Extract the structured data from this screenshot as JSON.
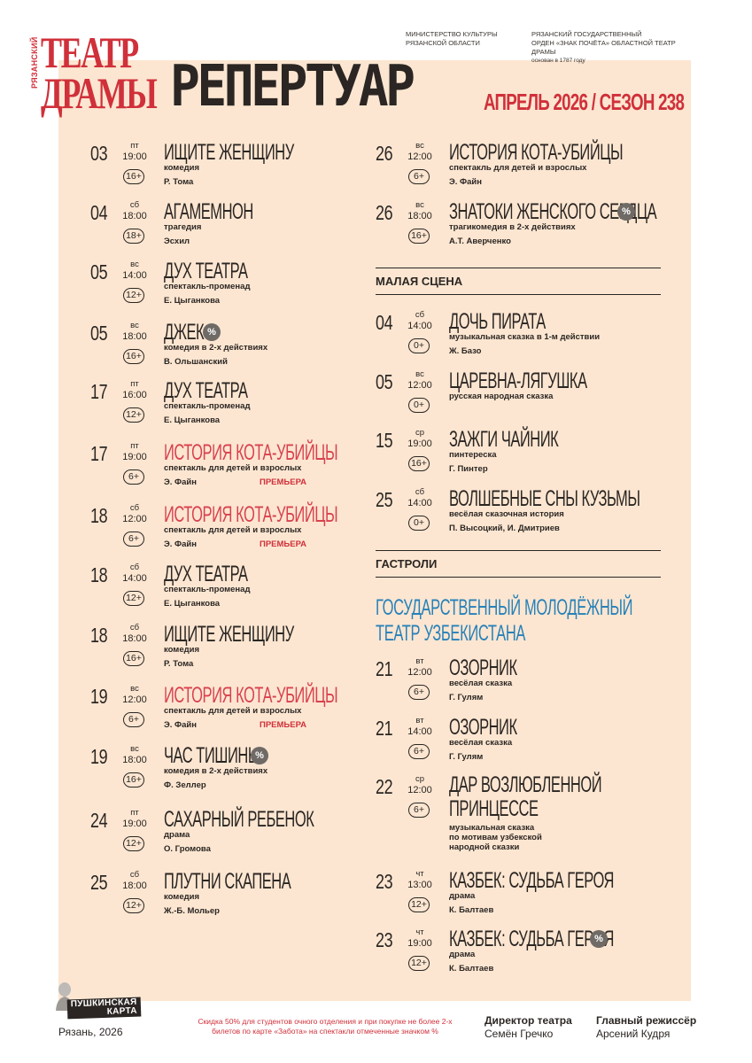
{
  "header": {
    "logo_side": "РЯЗАНСКИЙ",
    "logo_line1": "ТЕАТР",
    "logo_line2": "ДРАМЫ",
    "title": "РЕПЕРТУАР",
    "ministry": [
      "МИНИСТЕРСТВО КУЛЬТУРЫ",
      "РЯЗАНСКОЙ ОБЛАСТИ"
    ],
    "theatre": [
      "РЯЗАНСКИЙ ГОСУДАРСТВЕННЫЙ",
      "ОРДЕН «ЗНАК ПОЧЁТА» ОБЛАСТНОЙ ТЕАТР ДРАМЫ"
    ],
    "founded": "основан в 1787 году",
    "season": "АПРЕЛЬ 2026 / СЕЗОН 238"
  },
  "colors": {
    "background": "#fce6d1",
    "accent": "#d0303a",
    "tour": "#2781b9",
    "text": "#2b2623"
  },
  "left_events": [
    {
      "day": "03",
      "weekday": "пт",
      "time": "19:00",
      "age": "16+",
      "title": "ИЩИТЕ ЖЕНЩИНУ",
      "genre": "комедия",
      "author": "Р. Тома"
    },
    {
      "day": "04",
      "weekday": "сб",
      "time": "18:00",
      "age": "18+",
      "title": "АГАМЕМНОН",
      "genre": "трагедия",
      "author": "Эсхил"
    },
    {
      "day": "05",
      "weekday": "вс",
      "time": "14:00",
      "age": "12+",
      "title": "ДУХ ТЕАТРА",
      "genre": "спектакль-променад",
      "author": "Е. Цыганкова"
    },
    {
      "day": "05",
      "weekday": "вс",
      "time": "18:00",
      "age": "16+",
      "title": "ДЖЕК",
      "genre": "комедия в 2-х действиях",
      "author": "В. Ольшанский",
      "discount": "%"
    },
    {
      "day": "17",
      "weekday": "пт",
      "time": "16:00",
      "age": "12+",
      "title": "ДУХ ТЕАТРА",
      "genre": "спектакль-променад",
      "author": "Е. Цыганкова"
    },
    {
      "day": "17",
      "weekday": "пт",
      "time": "19:00",
      "age": "6+",
      "title": "ИСТОРИЯ КОТА-УБИЙЦЫ",
      "genre": "спектакль для детей и взрослых",
      "author": "Э. Файн",
      "premiere": "ПРЕМЬЕРА"
    },
    {
      "day": "18",
      "weekday": "сб",
      "time": "12:00",
      "age": "6+",
      "title": "ИСТОРИЯ КОТА-УБИЙЦЫ",
      "genre": "спектакль для детей и взрослых",
      "author": "Э. Файн",
      "premiere": "ПРЕМЬЕРА"
    },
    {
      "day": "18",
      "weekday": "сб",
      "time": "14:00",
      "age": "12+",
      "title": "ДУХ ТЕАТРА",
      "genre": "спектакль-променад",
      "author": "Е. Цыганкова"
    },
    {
      "day": "18",
      "weekday": "сб",
      "time": "18:00",
      "age": "16+",
      "title": "ИЩИТЕ ЖЕНЩИНУ",
      "genre": "комедия",
      "author": "Р. Тома"
    },
    {
      "day": "19",
      "weekday": "вс",
      "time": "12:00",
      "age": "6+",
      "title": "ИСТОРИЯ КОТА-УБИЙЦЫ",
      "genre": "спектакль для детей и взрослых",
      "author": "Э. Файн",
      "premiere": "ПРЕМЬЕРА"
    },
    {
      "day": "19",
      "weekday": "вс",
      "time": "18:00",
      "age": "16+",
      "title": "ЧАС ТИШИНЫ",
      "genre": "комедия в 2-х действиях",
      "author": "Ф. Зеллер",
      "discount": "%"
    },
    {
      "day": "24",
      "weekday": "пт",
      "time": "19:00",
      "age": "12+",
      "title": "САХАРНЫЙ РЕБЕНОК",
      "genre": "драма",
      "author": "О. Громова"
    },
    {
      "day": "25",
      "weekday": "сб",
      "time": "18:00",
      "age": "12+",
      "title": "ПЛУТНИ СКАПЕНА",
      "genre": "комедия",
      "author": "Ж.-Б. Мольер"
    }
  ],
  "right_events_main": [
    {
      "day": "26",
      "weekday": "вс",
      "time": "12:00",
      "age": "6+",
      "title": "ИСТОРИЯ КОТА-УБИЙЦЫ",
      "genre": "спектакль для детей и взрослых",
      "author": "Э. Файн"
    },
    {
      "day": "26",
      "weekday": "вс",
      "time": "18:00",
      "age": "16+",
      "title": "ЗНАТОКИ ЖЕНСКОГО СЕРДЦА",
      "genre": "трагикомедия в 2-х действиях",
      "author": "А.Т. Аверченко",
      "discount": "%"
    }
  ],
  "small_stage": {
    "label": "МАЛАЯ СЦЕНА",
    "events": [
      {
        "day": "04",
        "weekday": "сб",
        "time": "14:00",
        "age": "0+",
        "title": "ДОЧЬ ПИРАТА",
        "genre": "музыкальная сказка в 1-м действии",
        "author": "Ж. Базо"
      },
      {
        "day": "05",
        "weekday": "вс",
        "time": "12:00",
        "age": "0+",
        "title": "ЦАРЕВНА-ЛЯГУШКА",
        "genre": "русская народная сказка",
        "author": ""
      },
      {
        "day": "15",
        "weekday": "ср",
        "time": "19:00",
        "age": "16+",
        "title": "ЗАЖГИ ЧАЙНИК",
        "genre": "пинтереска",
        "author": "Г. Пинтер"
      },
      {
        "day": "25",
        "weekday": "сб",
        "time": "14:00",
        "age": "0+",
        "title": "ВОЛШЕБНЫЕ СНЫ КУЗЬМЫ",
        "genre": "весёлая сказочная история",
        "author": "П. Высоцкий, И. Дмитриев"
      }
    ]
  },
  "tours": {
    "label": "ГАСТРОЛИ",
    "troupe_line1": "ГОСУДАРСТВЕННЫЙ МОЛОДЁЖНЫЙ",
    "troupe_line2": "ТЕАТР УЗБЕКИСТАНА",
    "events": [
      {
        "day": "21",
        "weekday": "вт",
        "time": "12:00",
        "age": "6+",
        "title": "ОЗОРНИК",
        "genre": "весёлая сказка",
        "author": "Г. Гулям"
      },
      {
        "day": "21",
        "weekday": "вт",
        "time": "14:00",
        "age": "6+",
        "title": "ОЗОРНИК",
        "genre": "весёлая сказка",
        "author": "Г. Гулям"
      },
      {
        "day": "22",
        "weekday": "ср",
        "time": "12:00",
        "age": "6+",
        "title_line1": "ДАР ВОЗЛЮБЛЕННОЙ",
        "title_line2": "ПРИНЦЕССЕ",
        "genre_lines": [
          "музыкальная сказка",
          "по мотивам узбекской",
          "народной сказки"
        ]
      },
      {
        "day": "23",
        "weekday": "чт",
        "time": "13:00",
        "age": "12+",
        "title": "КАЗБЕК: СУДЬБА ГЕРОЯ",
        "genre": "драма",
        "author": "К. Балтаев"
      },
      {
        "day": "23",
        "weekday": "чт",
        "time": "19:00",
        "age": "12+",
        "title": "КАЗБЕК: СУДЬБА ГЕРОЯ",
        "genre": "драма",
        "author": "К. Балтаев",
        "discount": "%"
      }
    ]
  },
  "footer": {
    "pushkin_line1": "ПУШКИНСКАЯ",
    "pushkin_line2": "КАРТА",
    "city": "Рязань, 2026",
    "discount_note": "Скидка 50% для студентов очного отделения и при покупке не более 2-х билетов по карте «Забота» на спектакли отмеченные значком %",
    "director_role": "Директор театра",
    "director_name": "Семён Гречко",
    "chief_role": "Главный режиссёр",
    "chief_name": "Арсений Кудря"
  }
}
